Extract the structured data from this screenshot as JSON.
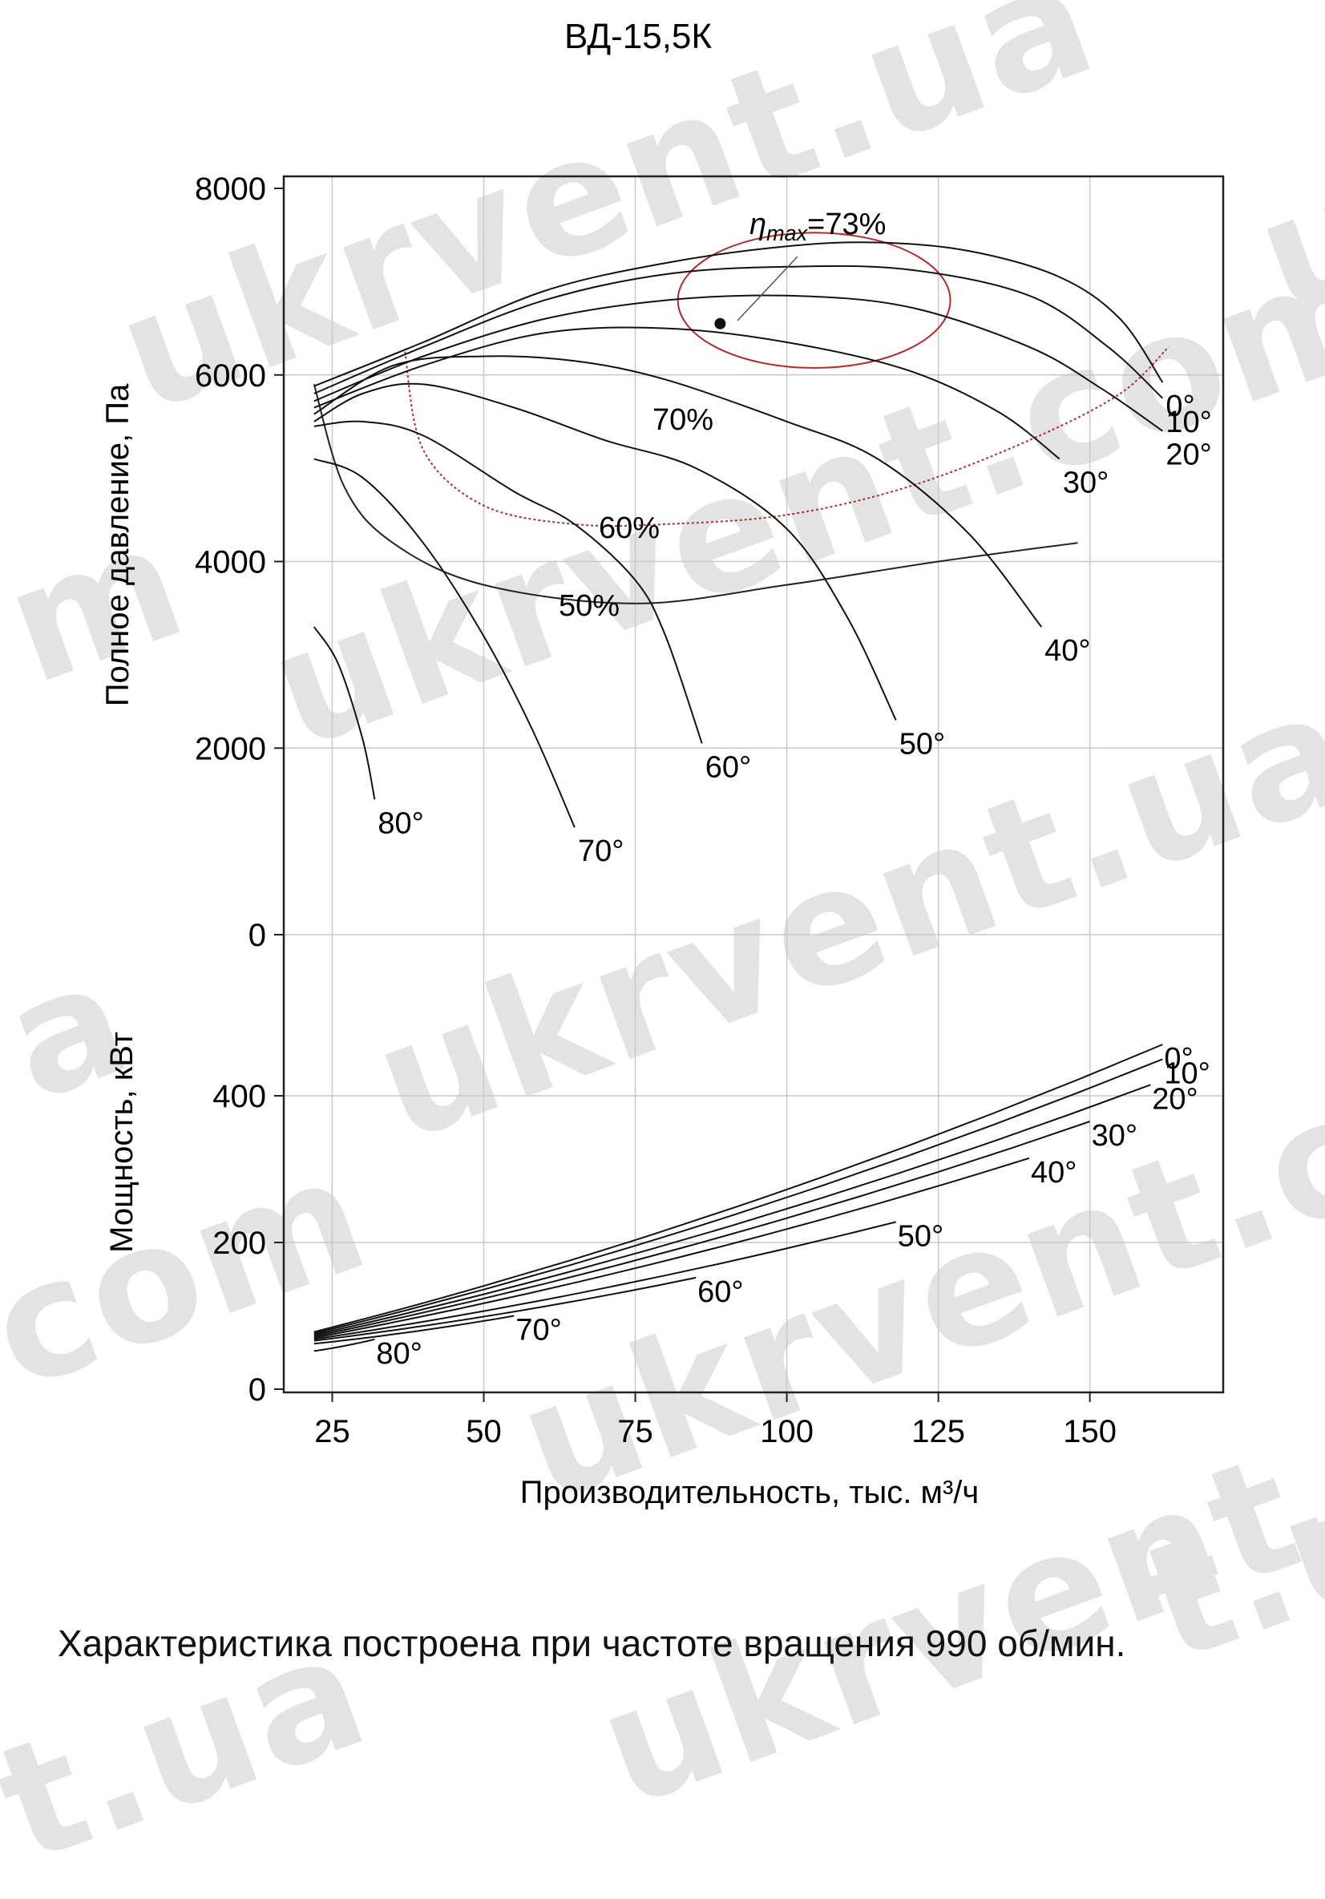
{
  "watermarks": [
    "ukrvent.ua",
    "ukrvent.com",
    "ukrvent.ua",
    "ukrvent.com",
    "ukrvent.ua",
    "u",
    "com",
    "t.ua",
    "a",
    "t.u",
    "m"
  ],
  "caption": "Характеристика построена при частоте вращения 990 об/мин.",
  "chart_data": {
    "type": "line",
    "title": "ВД-15,5К",
    "xlabel": "Производительность, тыс. м³/ч",
    "xlim": [
      17,
      172
    ],
    "xticks": [
      "25",
      "50",
      "75",
      "100",
      "125",
      "150"
    ],
    "grid": true,
    "line_color": "#111111",
    "efficiency_color": "#b52a2a",
    "panels": [
      {
        "name": "pressure",
        "ylabel": "Полное давление, Па",
        "ylim": [
          0,
          8000
        ],
        "yticks": [
          "0",
          "2000",
          "4000",
          "6000",
          "8000"
        ],
        "series": [
          {
            "name": "0°",
            "label": "0°",
            "points": [
              [
                22,
                5880
              ],
              [
                40,
                6350
              ],
              [
                60,
                6900
              ],
              [
                80,
                7200
              ],
              [
                100,
                7380
              ],
              [
                115,
                7420
              ],
              [
                130,
                7330
              ],
              [
                145,
                7050
              ],
              [
                155,
                6600
              ],
              [
                162,
                5920
              ]
            ]
          },
          {
            "name": "10°",
            "label": "10°",
            "points": [
              [
                22,
                5800
              ],
              [
                40,
                6300
              ],
              [
                60,
                6800
              ],
              [
                80,
                7080
              ],
              [
                100,
                7160
              ],
              [
                120,
                7130
              ],
              [
                140,
                6850
              ],
              [
                153,
                6300
              ],
              [
                162,
                5750
              ]
            ]
          },
          {
            "name": "20°",
            "label": "20°",
            "points": [
              [
                22,
                5720
              ],
              [
                40,
                6200
              ],
              [
                60,
                6600
              ],
              [
                80,
                6800
              ],
              [
                100,
                6850
              ],
              [
                120,
                6730
              ],
              [
                140,
                6300
              ],
              [
                152,
                5850
              ],
              [
                162,
                5400
              ]
            ]
          },
          {
            "name": "30°",
            "label": "30°",
            "points": [
              [
                22,
                5650
              ],
              [
                40,
                6100
              ],
              [
                60,
                6450
              ],
              [
                80,
                6500
              ],
              [
                100,
                6350
              ],
              [
                120,
                6050
              ],
              [
                135,
                5600
              ],
              [
                145,
                5100
              ]
            ]
          },
          {
            "name": "40°",
            "label": "40°",
            "points": [
              [
                22,
                5580
              ],
              [
                35,
                6100
              ],
              [
                50,
                6200
              ],
              [
                65,
                6150
              ],
              [
                80,
                5950
              ],
              [
                100,
                5500
              ],
              [
                115,
                5100
              ],
              [
                130,
                4300
              ],
              [
                142,
                3300
              ]
            ]
          },
          {
            "name": "50°",
            "label": "50°",
            "points": [
              [
                22,
                5500
              ],
              [
                30,
                5800
              ],
              [
                40,
                5900
              ],
              [
                55,
                5650
              ],
              [
                70,
                5300
              ],
              [
                85,
                5000
              ],
              [
                100,
                4350
              ],
              [
                110,
                3400
              ],
              [
                118,
                2300
              ]
            ]
          },
          {
            "name": "60°",
            "label": "60°",
            "points": [
              [
                22,
                5450
              ],
              [
                30,
                5500
              ],
              [
                40,
                5350
              ],
              [
                55,
                4750
              ],
              [
                65,
                4400
              ],
              [
                75,
                3800
              ],
              [
                80,
                3200
              ],
              [
                86,
                2050
              ]
            ]
          },
          {
            "name": "70°",
            "label": "70°",
            "points": [
              [
                22,
                5100
              ],
              [
                30,
                4900
              ],
              [
                40,
                4200
              ],
              [
                50,
                3200
              ],
              [
                58,
                2200
              ],
              [
                65,
                1150
              ]
            ]
          },
          {
            "name": "80°",
            "label": "80°",
            "points": [
              [
                22,
                3300
              ],
              [
                26,
                2900
              ],
              [
                30,
                2100
              ],
              [
                32,
                1450
              ]
            ]
          }
        ],
        "efficiency_curves": [
          {
            "label": "50%",
            "points": [
              [
                22,
                5900
              ],
              [
                27,
                4800
              ],
              [
                35,
                4200
              ],
              [
                50,
                3750
              ],
              [
                75,
                3550
              ],
              [
                100,
                3750
              ],
              [
                125,
                4000
              ],
              [
                148,
                4200
              ]
            ]
          },
          {
            "label": "60%",
            "points": [
              [
                37,
                6250
              ],
              [
                40,
                5200
              ],
              [
                50,
                4600
              ],
              [
                65,
                4400
              ],
              [
                80,
                4400
              ],
              [
                100,
                4500
              ],
              [
                120,
                4800
              ],
              [
                140,
                5300
              ],
              [
                155,
                5800
              ],
              [
                163,
                6300
              ]
            ]
          },
          {
            "label": "70%",
            "points": [
              [
                90,
                6300
              ],
              [
                119,
                6300
              ],
              [
                119,
                7300
              ],
              [
                90,
                7300
              ]
            ]
          }
        ],
        "efficiency_labels": {
          "l50": "50%",
          "l60": "60%",
          "l70": "70%"
        },
        "eta_max_label": "ηmax=73%",
        "eta_sym": "η",
        "eta_sub": "max",
        "eta_value": "=73%",
        "eta_max_point": {
          "x": 89,
          "y": 6550
        }
      },
      {
        "name": "power",
        "ylabel": "Мощность, кВт",
        "ylim": [
          0,
          480
        ],
        "yticks": [
          "0",
          "200",
          "400"
        ],
        "series": [
          {
            "name": "0°",
            "label": "0°",
            "x": [
              22,
              162
            ],
            "y": [
              78,
              470
            ]
          },
          {
            "name": "10°",
            "label": "10°",
            "x": [
              22,
              162
            ],
            "y": [
              76,
              450
            ]
          },
          {
            "name": "20°",
            "label": "20°",
            "x": [
              22,
              160
            ],
            "y": [
              74,
              415
            ]
          },
          {
            "name": "30°",
            "label": "30°",
            "x": [
              22,
              150
            ],
            "y": [
              72,
              365
            ]
          },
          {
            "name": "40°",
            "label": "40°",
            "x": [
              22,
              140
            ],
            "y": [
              70,
              315
            ]
          },
          {
            "name": "50°",
            "label": "50°",
            "x": [
              22,
              118
            ],
            "y": [
              68,
              228
            ]
          },
          {
            "name": "60°",
            "label": "60°",
            "x": [
              22,
              85
            ],
            "y": [
              66,
              152
            ]
          },
          {
            "name": "70°",
            "label": "70°",
            "x": [
              22,
              55
            ],
            "y": [
              62,
              100
            ]
          },
          {
            "name": "80°",
            "label": "80°",
            "x": [
              22,
              32
            ],
            "y": [
              52,
              68
            ]
          }
        ]
      }
    ]
  }
}
